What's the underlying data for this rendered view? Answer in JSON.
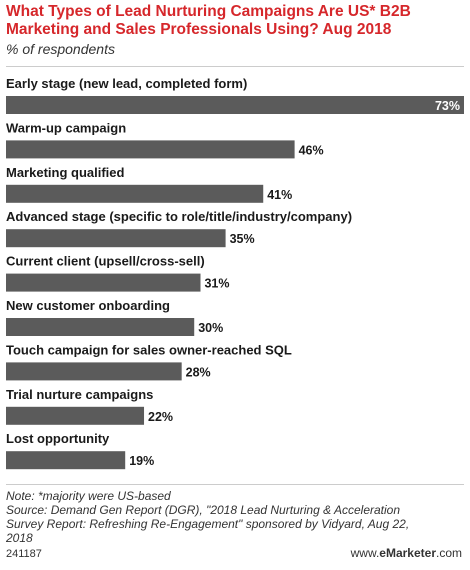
{
  "header": {
    "title": "What Types of Lead Nurturing Campaigns Are US* B2B Marketing and Sales Professionals Using? Aug 2018",
    "subtitle": "% of respondents"
  },
  "chart_data": {
    "type": "bar",
    "orientation": "horizontal",
    "title": "What Types of Lead Nurturing Campaigns Are US* B2B Marketing and Sales Professionals Using? Aug 2018",
    "subtitle": "% of respondents",
    "categories": [
      "Early stage (new lead, completed form)",
      "Warm-up campaign",
      "Marketing qualified",
      "Advanced stage (specific to role/title/industry/company)",
      "Current client (upsell/cross-sell)",
      "New customer onboarding",
      "Touch campaign for sales owner-reached SQL",
      "Trial nurture campaigns",
      "Lost opportunity"
    ],
    "values": [
      73,
      46,
      41,
      35,
      31,
      30,
      28,
      22,
      19
    ],
    "value_labels": [
      "73%",
      "46%",
      "41%",
      "35%",
      "31%",
      "30%",
      "28%",
      "22%",
      "19%"
    ],
    "xlim": [
      0,
      73
    ],
    "grid": false,
    "legend": "none",
    "bar_color": "#5b5b5b"
  },
  "footer": {
    "note": "Note: *majority were US-based",
    "source_line1": "Source: Demand Gen Report (DGR), \"2018 Lead Nurturing & Acceleration",
    "source_line2": "Survey Report: Refreshing Re-Engagement\" sponsored by Vidyard, Aug 22,",
    "source_line3": "2018",
    "chart_id": "241187",
    "brand_prefix": "www.",
    "brand_name": "eMarketer",
    "brand_suffix": ".com"
  },
  "colors": {
    "title": "#d6272b",
    "bar": "#5b5b5b",
    "text": "#1a1a1a"
  }
}
